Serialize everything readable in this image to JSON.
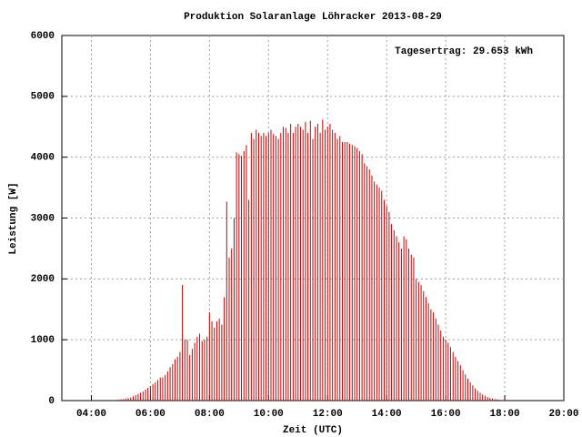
{
  "chart_data": {
    "type": "bar",
    "title": "Produktion Solaranlage Löhracker 2013-08-29",
    "annotation": "Tagesertrag: 29.653 kWh",
    "x_label": "Zeit (UTC)",
    "y_label": "Leistung [W]",
    "color": "#cc0000",
    "grid": true,
    "xlim": [
      "03:00",
      "20:00"
    ],
    "xticks": [
      "04:00",
      "06:00",
      "08:00",
      "10:00",
      "12:00",
      "14:00",
      "16:00",
      "18:00",
      "20:00"
    ],
    "ylim": [
      0,
      6000
    ],
    "yticks": [
      0,
      1000,
      2000,
      3000,
      4000,
      5000,
      6000
    ],
    "x": [
      "04:50",
      "04:55",
      "05:00",
      "05:05",
      "05:10",
      "05:15",
      "05:20",
      "05:25",
      "05:30",
      "05:35",
      "05:40",
      "05:45",
      "05:50",
      "05:55",
      "06:00",
      "06:05",
      "06:10",
      "06:15",
      "06:20",
      "06:25",
      "06:30",
      "06:35",
      "06:40",
      "06:45",
      "06:50",
      "06:55",
      "07:00",
      "07:05",
      "07:10",
      "07:15",
      "07:20",
      "07:25",
      "07:30",
      "07:35",
      "07:40",
      "07:45",
      "07:50",
      "07:55",
      "08:00",
      "08:05",
      "08:10",
      "08:15",
      "08:20",
      "08:25",
      "08:30",
      "08:35",
      "08:40",
      "08:45",
      "08:50",
      "08:55",
      "09:00",
      "09:05",
      "09:10",
      "09:15",
      "09:20",
      "09:25",
      "09:30",
      "09:35",
      "09:40",
      "09:45",
      "09:50",
      "09:55",
      "10:00",
      "10:05",
      "10:10",
      "10:15",
      "10:20",
      "10:25",
      "10:30",
      "10:35",
      "10:40",
      "10:45",
      "10:50",
      "10:55",
      "11:00",
      "11:05",
      "11:10",
      "11:15",
      "11:20",
      "11:25",
      "11:30",
      "11:35",
      "11:40",
      "11:45",
      "11:50",
      "11:55",
      "12:00",
      "12:05",
      "12:10",
      "12:15",
      "12:20",
      "12:25",
      "12:30",
      "12:35",
      "12:40",
      "12:45",
      "12:50",
      "12:55",
      "13:00",
      "13:05",
      "13:10",
      "13:15",
      "13:20",
      "13:25",
      "13:30",
      "13:35",
      "13:40",
      "13:45",
      "13:50",
      "13:55",
      "14:00",
      "14:05",
      "14:10",
      "14:15",
      "14:20",
      "14:25",
      "14:30",
      "14:35",
      "14:40",
      "14:45",
      "14:50",
      "14:55",
      "15:00",
      "15:05",
      "15:10",
      "15:15",
      "15:20",
      "15:25",
      "15:30",
      "15:35",
      "15:40",
      "15:45",
      "15:50",
      "15:55",
      "16:00",
      "16:05",
      "16:10",
      "16:15",
      "16:20",
      "16:25",
      "16:30",
      "16:35",
      "16:40",
      "16:45",
      "16:50",
      "16:55",
      "17:00",
      "17:05",
      "17:10",
      "17:15",
      "17:20",
      "17:25",
      "17:30",
      "17:35",
      "17:40",
      "17:45",
      "17:50",
      "17:55",
      "18:00"
    ],
    "values": [
      10,
      15,
      20,
      25,
      30,
      40,
      50,
      70,
      90,
      110,
      130,
      150,
      180,
      210,
      240,
      270,
      300,
      340,
      380,
      380,
      420,
      480,
      550,
      600,
      680,
      720,
      800,
      1900,
      1000,
      1000,
      750,
      850,
      950,
      1050,
      1100,
      980,
      1000,
      1050,
      1450,
      1300,
      1200,
      1300,
      1350,
      1250,
      1700,
      3270,
      2350,
      2500,
      3000,
      4080,
      4050,
      4020,
      4100,
      4200,
      3300,
      4400,
      4300,
      4450,
      4400,
      4350,
      4400,
      4350,
      4400,
      4450,
      4380,
      4350,
      4300,
      4400,
      4500,
      4480,
      4400,
      4550,
      4400,
      4500,
      4550,
      4500,
      4450,
      4580,
      4400,
      4600,
      4300,
      4500,
      4550,
      4400,
      4620,
      4450,
      4500,
      4550,
      4450,
      4400,
      4300,
      4350,
      4250,
      4250,
      4250,
      4220,
      4200,
      4180,
      4150,
      4100,
      4050,
      3900,
      3850,
      3800,
      3700,
      3600,
      3550,
      3500,
      3450,
      3300,
      3200,
      3100,
      2900,
      2800,
      2700,
      2600,
      2500,
      2700,
      2650,
      2500,
      2400,
      2350,
      2000,
      1950,
      1900,
      1800,
      1700,
      1600,
      1500,
      1450,
      1350,
      1250,
      1150,
      1050,
      1000,
      950,
      880,
      800,
      720,
      650,
      580,
      500,
      430,
      360,
      300,
      250,
      200,
      160,
      130,
      100,
      80,
      60,
      45,
      35,
      25,
      18,
      12,
      8,
      5
    ]
  }
}
